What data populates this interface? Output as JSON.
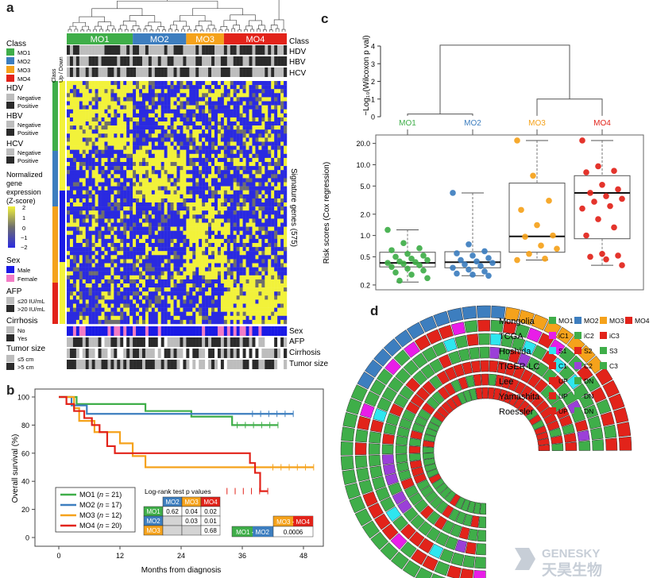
{
  "panels": {
    "a": "a",
    "b": "b",
    "c": "c",
    "d": "d"
  },
  "colors": {
    "MO1": "#3fae49",
    "MO2": "#3d7ebf",
    "MO3": "#f5a21b",
    "MO4": "#e2231a",
    "heat_low": "#2a2ae0",
    "heat_mid": "#6e6e6e",
    "heat_high": "#f2f23a",
    "male": "#1a1ae6",
    "female": "#f27cc5",
    "negative": "#bdbdbd",
    "positive": "#2b2b2b",
    "iC1": "#e81de8",
    "C2": "#9b40d8",
    "S1": "#2ee6ef"
  },
  "panel_a": {
    "class_label": "Class",
    "clusters": [
      "MO1",
      "MO2",
      "MO3",
      "MO4"
    ],
    "row_labels": [
      "Class",
      "HDV",
      "HBV",
      "HCV"
    ],
    "side_labels": [
      "Class",
      "Up / Down"
    ],
    "right_label": "Signature genes (575)",
    "bottom_rows": [
      "Sex",
      "AFP",
      "Cirrhosis",
      "Tumor size"
    ],
    "legend": {
      "class_title": "Class",
      "class_items": [
        "MO1",
        "MO2",
        "MO3",
        "MO4"
      ],
      "hdv_title": "HDV",
      "hbv_title": "HBV",
      "hcv_title": "HCV",
      "neg": "Negative",
      "pos": "Positive",
      "expr_title": [
        "Normalized",
        "gene",
        "expression",
        "(Z-score)"
      ],
      "expr_ticks": [
        "2",
        "1",
        "0",
        "−1",
        "−2"
      ],
      "sex_title": "Sex",
      "sex_items": [
        "Male",
        "Female"
      ],
      "afp_title": "AFP",
      "afp_items": [
        "≤20 IU/mL",
        ">20 IU/mL"
      ],
      "cirr_title": "Cirrhosis",
      "cirr_items": [
        "No",
        "Yes"
      ],
      "tumor_title": "Tumor size",
      "tumor_items": [
        "≤5 cm",
        ">5 cm"
      ]
    }
  },
  "panel_b": {
    "ylabel": "Overall survival (%)",
    "xlabel": "Months from diagnosis",
    "legend": [
      {
        "name": "MO1",
        "n": "21",
        "color": "#3fae49"
      },
      {
        "name": "MO2",
        "n": "17",
        "color": "#3d7ebf"
      },
      {
        "name": "MO3",
        "n": "12",
        "color": "#f5a21b"
      },
      {
        "name": "MO4",
        "n": "20",
        "color": "#e2231a"
      }
    ],
    "logrank_title": "Log-rank test p values",
    "logrank_cols": [
      "MO2",
      "MO3",
      "MO4"
    ],
    "logrank_rows": [
      {
        "row": "MO1",
        "values": [
          "0.62",
          "0.04",
          "0.02"
        ]
      },
      {
        "row": "MO2",
        "values": [
          "",
          "0.03",
          "0.01"
        ]
      },
      {
        "row": "MO3",
        "values": [
          "",
          "",
          "0.68"
        ]
      }
    ],
    "pair_compare": {
      "left_a": "MO1",
      "left_b": "MO2",
      "right_a": "MO3",
      "right_b": "MO4",
      "p": "0.0006"
    }
  },
  "panel_c": {
    "dendro_ylabel": "−Log₁₀(Wilcoxon p val)",
    "dendro_ticks": [
      "0",
      "1",
      "2",
      "3",
      "4"
    ],
    "groups": [
      "MO1",
      "MO2",
      "MO3",
      "MO4"
    ],
    "ylabel": "Risk scores (Cox regression)",
    "yticks": [
      "0.2",
      "0.5",
      "1.0",
      "2.0",
      "5.0",
      "10.0",
      "20.0"
    ]
  },
  "panel_d": {
    "studies": [
      {
        "name": "Mongolia",
        "items": [
          {
            "label": "MO1",
            "color": "#3fae49"
          },
          {
            "label": "MO2",
            "color": "#3d7ebf"
          },
          {
            "label": "MO3",
            "color": "#f5a21b"
          },
          {
            "label": "MO4",
            "color": "#e2231a"
          }
        ]
      },
      {
        "name": "TCGA",
        "items": [
          {
            "label": "iC1",
            "color": "#e81de8"
          },
          {
            "label": "iC2",
            "color": "#3fae49"
          },
          {
            "label": "iC3",
            "color": "#e2231a"
          }
        ]
      },
      {
        "name": "Hoshida",
        "items": [
          {
            "label": "S1",
            "color": "#2ee6ef"
          },
          {
            "label": "S2",
            "color": "#e2231a"
          },
          {
            "label": "S3",
            "color": "#3fae49"
          }
        ]
      },
      {
        "name": "TIGER-LC",
        "items": [
          {
            "label": "C1",
            "color": "#e2231a"
          },
          {
            "label": "C2",
            "color": "#9b40d8"
          },
          {
            "label": "C3",
            "color": "#3fae49"
          }
        ]
      },
      {
        "name": "Lee",
        "items": [
          {
            "label": "UP",
            "color": "#e2231a"
          },
          {
            "label": "DN",
            "color": "#3fae49"
          }
        ]
      },
      {
        "name": "Yamashita",
        "items": [
          {
            "label": "UP",
            "color": "#e2231a"
          },
          {
            "label": "DN",
            "color": "#3fae49"
          }
        ]
      },
      {
        "name": "Roessler",
        "items": [
          {
            "label": "UP",
            "color": "#e2231a"
          },
          {
            "label": "DN",
            "color": "#3fae49"
          }
        ]
      }
    ]
  },
  "chart_data": [
    {
      "type": "line",
      "title": "",
      "xlabel": "Months from diagnosis",
      "ylabel": "Overall survival (%)",
      "xlim": [
        0,
        48
      ],
      "ylim": [
        0,
        100
      ],
      "xticks": [
        0,
        12,
        24,
        36,
        48
      ],
      "yticks": [
        0,
        20,
        40,
        60,
        80,
        100
      ],
      "series": [
        {
          "name": "MO1",
          "x": [
            0,
            3.5,
            3.5,
            17,
            17,
            26,
            26,
            34,
            34,
            43
          ],
          "y": [
            100,
            100,
            95,
            95,
            90,
            90,
            86,
            86,
            80,
            80
          ]
        },
        {
          "name": "MO2",
          "x": [
            0,
            2.5,
            2.5,
            5.5,
            5.5,
            46
          ],
          "y": [
            100,
            100,
            94,
            94,
            88,
            88
          ]
        },
        {
          "name": "MO3",
          "x": [
            0,
            3,
            3,
            4,
            4,
            7,
            7,
            12,
            12,
            14.5,
            14.5,
            17,
            17,
            29,
            29,
            50
          ],
          "y": [
            100,
            100,
            92,
            92,
            83,
            83,
            75,
            75,
            67,
            67,
            58,
            58,
            50,
            50,
            50,
            50
          ]
        },
        {
          "name": "MO4",
          "x": [
            0,
            1.5,
            1.5,
            3,
            3,
            5,
            5,
            6.5,
            6.5,
            8,
            8,
            9.5,
            9.5,
            11,
            11,
            37.5,
            37.5,
            38.5,
            38.5,
            39.5,
            39.5,
            41
          ],
          "y": [
            100,
            100,
            95,
            95,
            90,
            90,
            85,
            85,
            80,
            80,
            75,
            75,
            65,
            65,
            60,
            60,
            53,
            53,
            46,
            46,
            33,
            33
          ]
        }
      ]
    },
    {
      "type": "scatter",
      "title": "",
      "xlabel": "",
      "ylabel": "Risk scores (Cox regression)",
      "scale": "log",
      "ylim": [
        0.18,
        25
      ],
      "categories": [
        "MO1",
        "MO2",
        "MO3",
        "MO4"
      ],
      "boxes": [
        {
          "name": "MO1",
          "q1": 0.36,
          "median": 0.41,
          "q3": 0.58,
          "whisker_low": 0.22,
          "whisker_high": 1.2
        },
        {
          "name": "MO2",
          "q1": 0.35,
          "median": 0.42,
          "q3": 0.59,
          "whisker_low": 0.27,
          "whisker_high": 4.0
        },
        {
          "name": "MO3",
          "q1": 0.58,
          "median": 0.97,
          "q3": 5.5,
          "whisker_low": 0.45,
          "whisker_high": 22
        },
        {
          "name": "MO4",
          "q1": 0.9,
          "median": 4.0,
          "q3": 7.0,
          "whisker_low": 0.38,
          "whisker_high": 22
        }
      ],
      "points": {
        "MO1": [
          1.2,
          0.78,
          0.66,
          0.62,
          0.55,
          0.52,
          0.5,
          0.47,
          0.45,
          0.43,
          0.42,
          0.41,
          0.4,
          0.38,
          0.36,
          0.34,
          0.32,
          0.3,
          0.28,
          0.25,
          0.23
        ],
        "MO2": [
          4.0,
          0.75,
          0.6,
          0.56,
          0.52,
          0.48,
          0.45,
          0.43,
          0.41,
          0.39,
          0.37,
          0.35,
          0.33,
          0.31,
          0.29,
          0.28,
          0.27
        ],
        "MO3": [
          22,
          7.0,
          3.1,
          2.3,
          1.4,
          1.0,
          0.96,
          0.72,
          0.65,
          0.55,
          0.47,
          0.45
        ],
        "MO4": [
          22,
          9.5,
          8.2,
          7.8,
          5.2,
          4.5,
          4.0,
          3.6,
          3.3,
          3.0,
          2.6,
          2.4,
          1.7,
          1.3,
          1.0,
          0.55,
          0.52,
          0.5,
          0.46,
          0.38
        ]
      }
    }
  ]
}
